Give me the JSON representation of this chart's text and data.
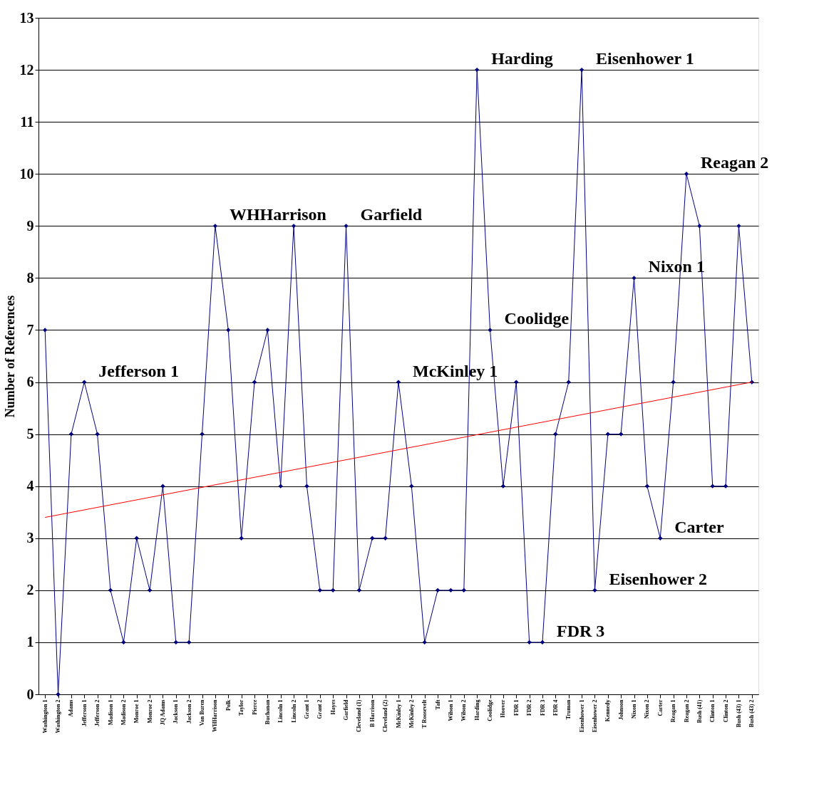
{
  "chart_data": {
    "type": "line",
    "ylabel": "Number of References",
    "categories": [
      "Washington 1",
      "Washington 2",
      "Adams",
      "Jefferson 1",
      "Jefferson 2",
      "Madison 1",
      "Madison 2",
      "Monroe 1",
      "Monroe 2",
      "JQ Adams",
      "Jackson 1",
      "Jackson 2",
      "Van Buren",
      "WHHarrison",
      "Polk",
      "Taylor",
      "Pierce",
      "Buchanan",
      "Lincoln 1",
      "Lincoln 2",
      "Grant 1",
      "Grant 2",
      "Hayes",
      "Garfield",
      "Cleveland (1)",
      "B Harrison",
      "Cleveland (2)",
      "McKinley 1",
      "McKinley 2",
      "T Roosevelt",
      "Taft",
      "Wilson 1",
      "Wilson 2",
      "Harding",
      "Coolidge",
      "Hoover",
      "FDR 1",
      "FDR 2",
      "FDR 3",
      "FDR 4",
      "Truman",
      "Eisenhower 1",
      "Eisenhower 2",
      "Kennedy",
      "Johnson",
      "Nixon 1",
      "Nixon 2",
      "Carter",
      "Reagan 1",
      "Reagan 2",
      "Bush (41)",
      "Clinton 1",
      "Clinton 2",
      "Bush (43) 1",
      "Bush (43) 2"
    ],
    "series": [
      {
        "color": "#000080",
        "marker": "diamond",
        "values": [
          7,
          0,
          5,
          6,
          5,
          2,
          1,
          3,
          2,
          4,
          1,
          1,
          5,
          9,
          7,
          3,
          6,
          7,
          4,
          9,
          4,
          2,
          2,
          9,
          2,
          3,
          3,
          6,
          4,
          1,
          2,
          2,
          2,
          12,
          7,
          4,
          6,
          1,
          1,
          5,
          6,
          12,
          2,
          5,
          5,
          8,
          4,
          3,
          6,
          10,
          9,
          4,
          4,
          9,
          6
        ]
      },
      {
        "type": "line",
        "color": "#ff0000",
        "marker": "none",
        "x": [
          "Washington 1",
          "Bush (43) 2"
        ],
        "values": [
          3.4,
          6.0
        ]
      }
    ],
    "ylim": [
      0,
      13
    ],
    "yticks": [
      0,
      1,
      2,
      3,
      4,
      5,
      6,
      7,
      8,
      9,
      10,
      11,
      12,
      13
    ],
    "grid": "y",
    "annotations": [
      {
        "text": "Jefferson 1",
        "x": "Jefferson 1",
        "y": 6
      },
      {
        "text": "WHHarrison",
        "x": "WHHarrison",
        "y": 9
      },
      {
        "text": "Garfield",
        "x": "Garfield",
        "y": 9
      },
      {
        "text": "McKinley 1",
        "x": "McKinley 1",
        "y": 6
      },
      {
        "text": "Harding",
        "x": "Harding",
        "y": 12
      },
      {
        "text": "Coolidge",
        "x": "Coolidge",
        "y": 7
      },
      {
        "text": "FDR 3",
        "x": "FDR 3",
        "y": 1
      },
      {
        "text": "Eisenhower 1",
        "x": "Eisenhower 1",
        "y": 12
      },
      {
        "text": "Eisenhower 2",
        "x": "Eisenhower 2",
        "y": 2
      },
      {
        "text": "Nixon 1",
        "x": "Nixon 1",
        "y": 8
      },
      {
        "text": "Carter",
        "x": "Carter",
        "y": 3
      },
      {
        "text": "Reagan 2",
        "x": "Reagan 2",
        "y": 10
      }
    ]
  }
}
